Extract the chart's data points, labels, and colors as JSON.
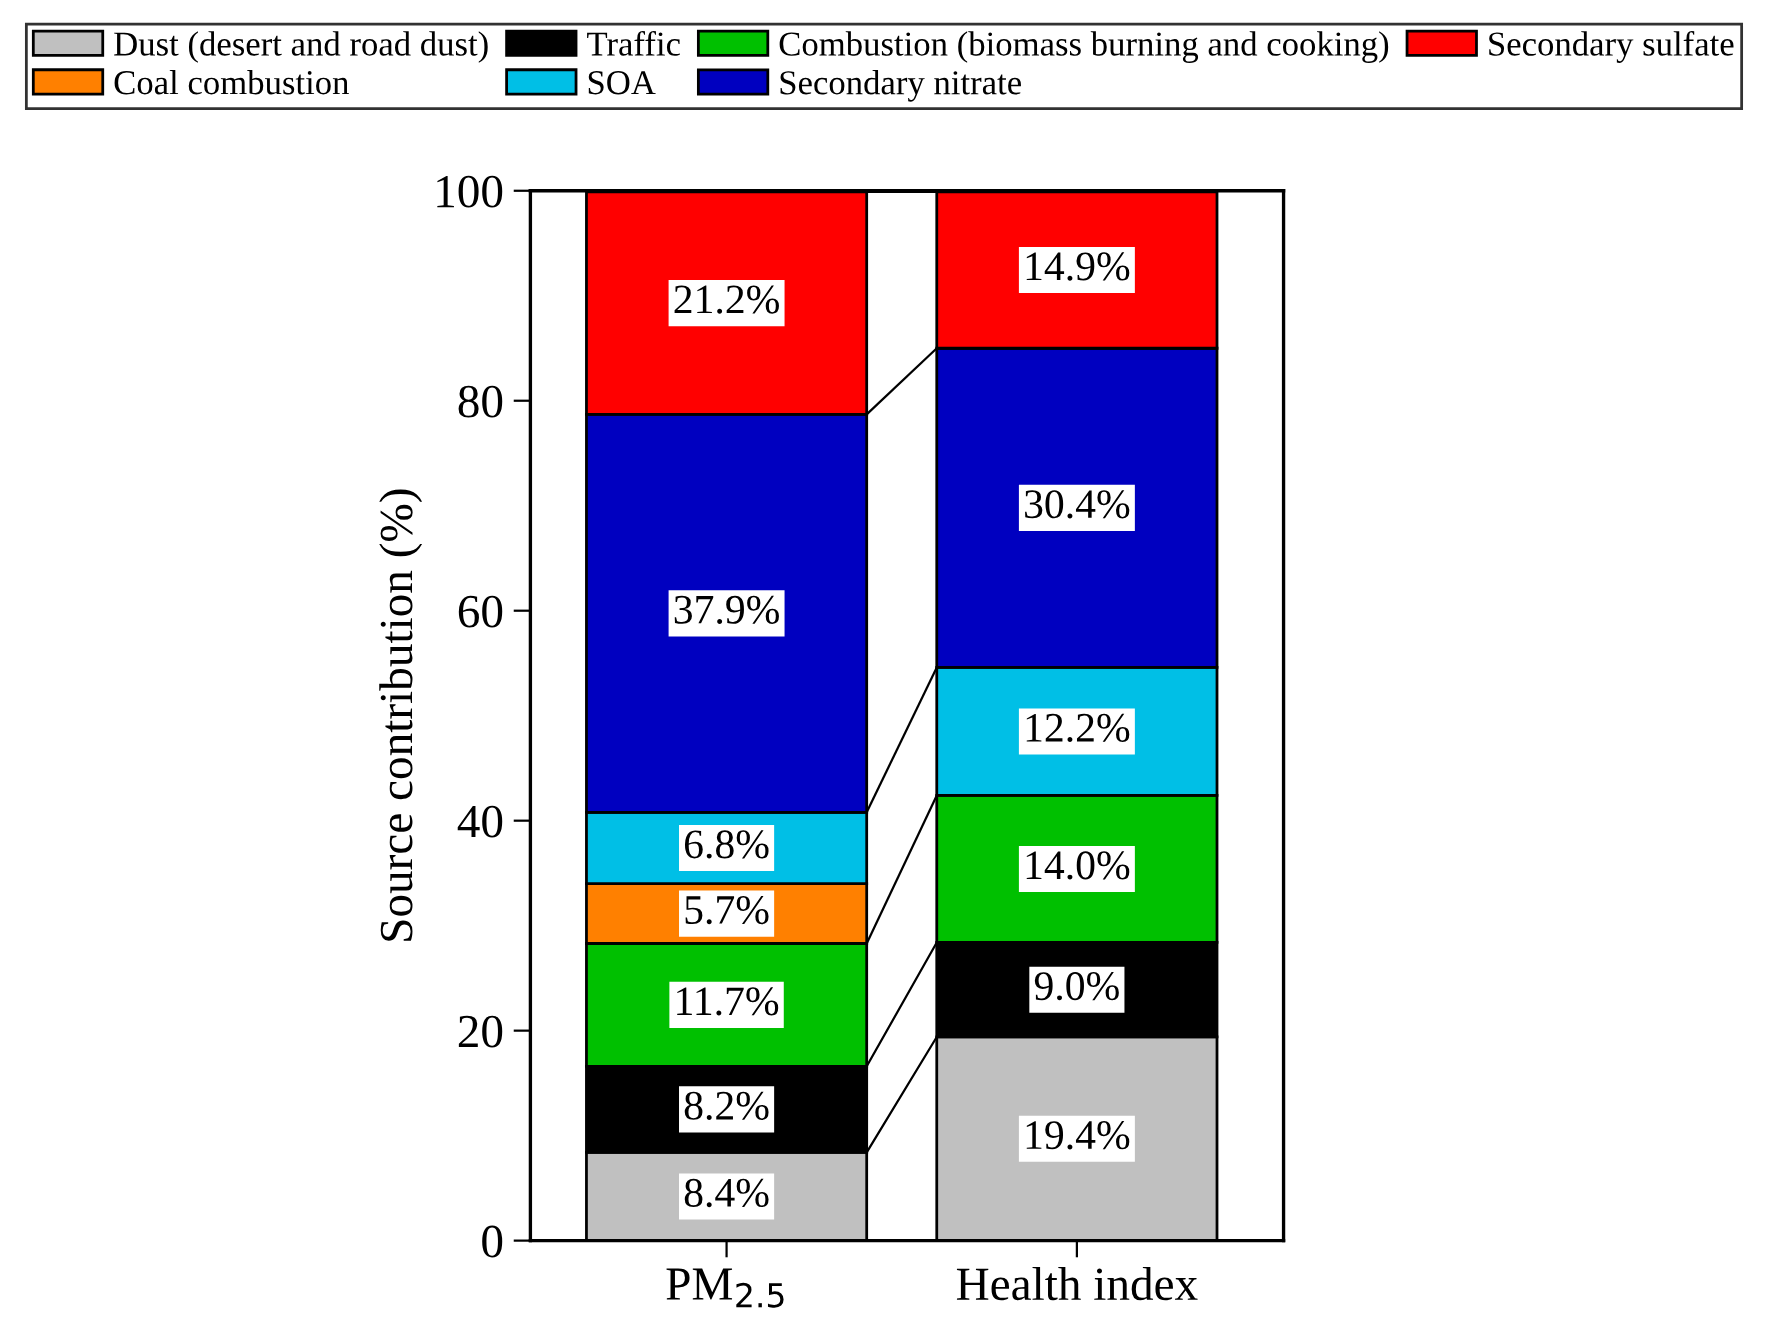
{
  "chart_data": {
    "type": "bar",
    "stacked": true,
    "ylabel": "Source contribution (%)",
    "categories": [
      "PM$_{2.5}$",
      "Health index"
    ],
    "ylim": [
      0,
      100
    ],
    "yticks": [
      0,
      20,
      40,
      60,
      80,
      100
    ],
    "grid": false,
    "legend": "top",
    "series": [
      {
        "name": "Dust (desert and road dust)",
        "color": "#c0c0c0",
        "values": [
          8.4,
          19.4
        ],
        "value_labels": [
          "8.4%",
          "19.4%"
        ]
      },
      {
        "name": "Traffic",
        "color": "#000000",
        "values": [
          8.2,
          9.0
        ],
        "value_labels": [
          "8.2%",
          "9.0%"
        ]
      },
      {
        "name": "Combustion (biomass burning and cooking)",
        "color": "#00c000",
        "values": [
          11.7,
          14.0
        ],
        "value_labels": [
          "11.7%",
          "14.0%"
        ]
      },
      {
        "name": "Coal combustion",
        "color": "#ff8000",
        "values": [
          5.7,
          null
        ],
        "value_labels": [
          "5.7%",
          null
        ]
      },
      {
        "name": "SOA",
        "color": "#00bfe6",
        "values": [
          6.8,
          12.2
        ],
        "value_labels": [
          "6.8%",
          "12.2%"
        ]
      },
      {
        "name": "Secondary nitrate",
        "color": "#0000c0",
        "values": [
          37.9,
          30.4
        ],
        "value_labels": [
          "37.9%",
          "30.4%"
        ]
      },
      {
        "name": "Secondary sulfate",
        "color": "#ff0000",
        "values": [
          21.2,
          14.9
        ],
        "value_labels": [
          "21.2%",
          "14.9%"
        ]
      }
    ]
  }
}
